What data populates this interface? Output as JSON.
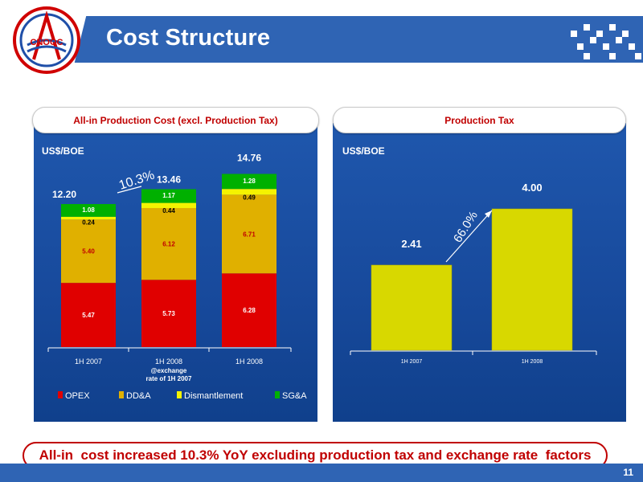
{
  "header": {
    "title": "Cost Structure",
    "logo_text": "CNOOC"
  },
  "chart_data": [
    {
      "type": "bar",
      "stacked": true,
      "title": "All-in Production Cost (excl. Production Tax)",
      "unit_label": "US$/BOE",
      "categories": [
        "1H 2007",
        "1H 2008",
        "1H 2008"
      ],
      "category_notes": [
        "",
        "@exchange rate of 1H 2007",
        ""
      ],
      "series": [
        {
          "name": "OPEX",
          "color": "#e00000",
          "values": [
            5.47,
            5.73,
            6.28
          ],
          "labels": [
            "5.47",
            "5.73",
            "6.28"
          ]
        },
        {
          "name": "DD&A",
          "color": "#e0b000",
          "values": [
            5.4,
            6.12,
            6.71
          ],
          "labels": [
            "5.40",
            "6.12",
            "6.71"
          ]
        },
        {
          "name": "Dismantlement",
          "color": "#f4f400",
          "values": [
            0.24,
            0.44,
            0.49
          ],
          "labels": [
            "0.24",
            "0.44",
            "0.49"
          ]
        },
        {
          "name": "SG&A",
          "color": "#00b000",
          "values": [
            1.08,
            1.17,
            1.28
          ],
          "labels": [
            "1.08",
            "1.17",
            "1.28"
          ]
        }
      ],
      "totals": [
        "12.20",
        "13.46",
        "14.76"
      ],
      "growth_annotation": "10.3%",
      "ylim": [
        0,
        16
      ],
      "legend_position": "bottom"
    },
    {
      "type": "bar",
      "title": "Production Tax",
      "unit_label": "US$/BOE",
      "categories": [
        "1H 2007",
        "1H 2008"
      ],
      "values": [
        2.41,
        4.0
      ],
      "labels": [
        "2.41",
        "4.00"
      ],
      "color": "#d8d800",
      "growth_annotation": "66.0%",
      "ylim": [
        0,
        5
      ]
    }
  ],
  "conclusion": "All-in  cost increased 10.3% YoY excluding production tax and exchange rate  factors",
  "page_number": "11",
  "colors": {
    "brand_blue": "#2f64b4",
    "panel_blue": "#1a4fa3",
    "accent_red": "#c00000"
  }
}
